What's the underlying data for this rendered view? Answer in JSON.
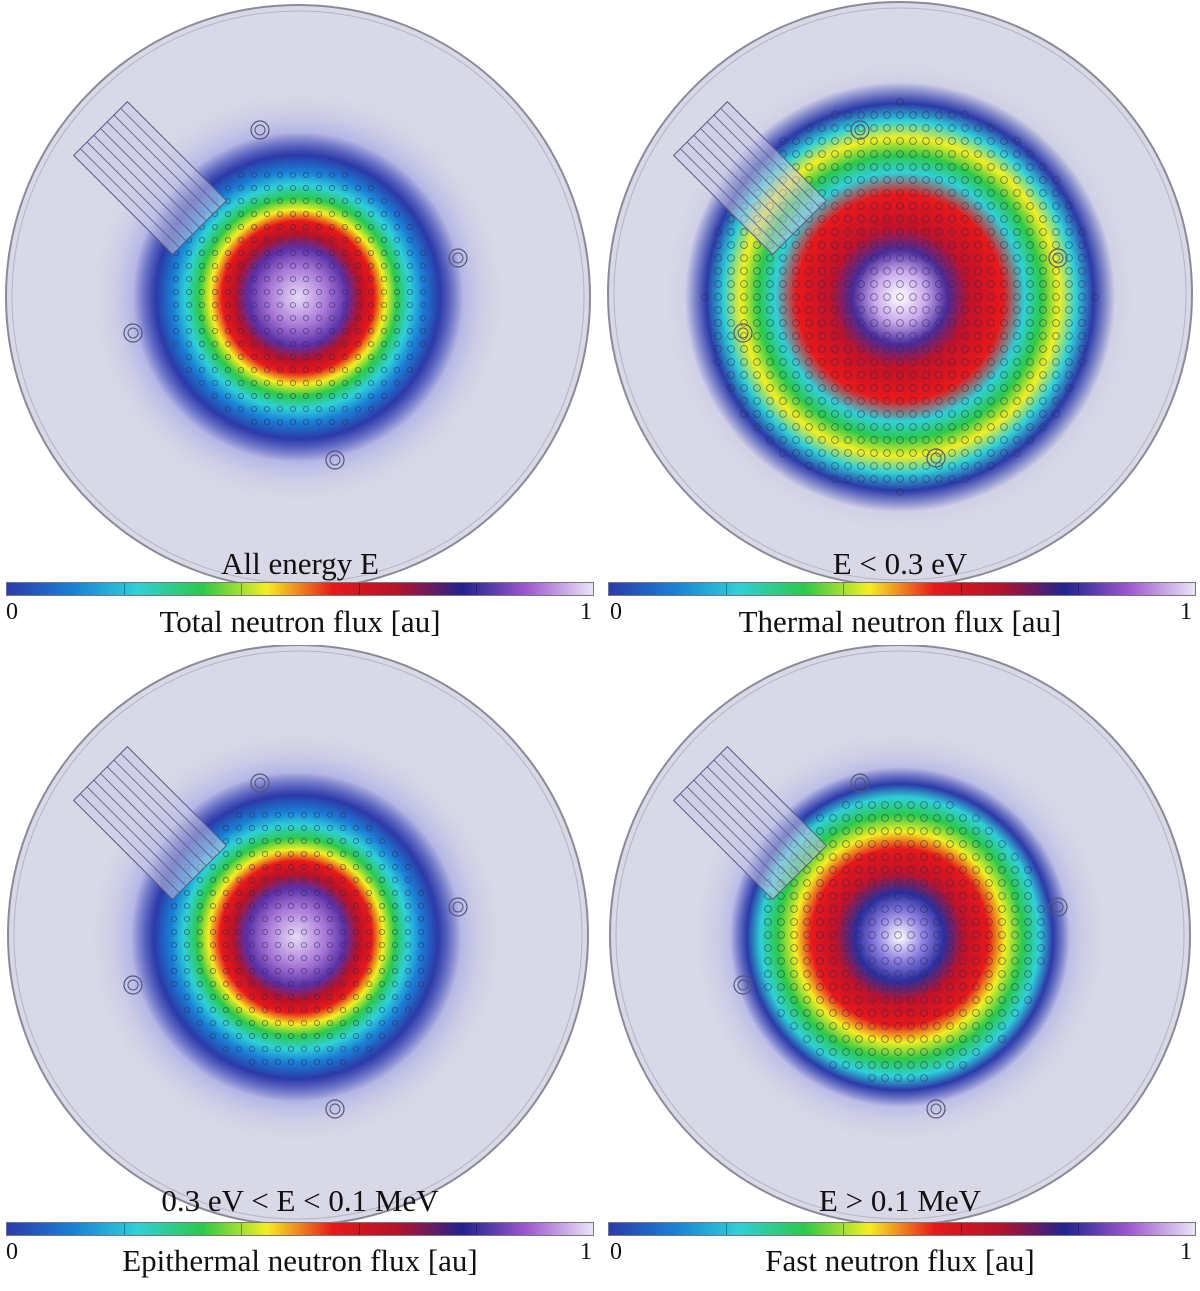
{
  "panels": [
    {
      "id": "total",
      "energy_label": "All energy E",
      "colorbar_min": "0",
      "colorbar_max": "1",
      "colorbar_title": "Total neutron flux [au]",
      "pattern": "ring"
    },
    {
      "id": "thermal",
      "energy_label": "E < 0.3 eV",
      "colorbar_min": "0",
      "colorbar_max": "1",
      "colorbar_title": "Thermal neutron flux [au]",
      "pattern": "thermal"
    },
    {
      "id": "epithermal",
      "energy_label": "0.3 eV < E < 0.1 MeV",
      "colorbar_min": "0",
      "colorbar_max": "1",
      "colorbar_title": "Epithermal neutron flux [au]",
      "pattern": "ring"
    },
    {
      "id": "fast",
      "energy_label": "E > 0.1 MeV",
      "colorbar_min": "0",
      "colorbar_max": "1",
      "colorbar_title": "Fast neutron flux [au]",
      "pattern": "fast"
    }
  ],
  "colormap": [
    "#ffffff",
    "#2b3aa8",
    "#1a7fd6",
    "#2fd0d8",
    "#2cc94a",
    "#f3ef22",
    "#e8181a",
    "#b4122a",
    "#21238f",
    "#a05ad0",
    "#e9e4f7"
  ],
  "colors": {
    "background_disc": "#d8d8e6",
    "disc_edge": "#8a8a98",
    "fuel_pin": "#2a2a50"
  }
}
